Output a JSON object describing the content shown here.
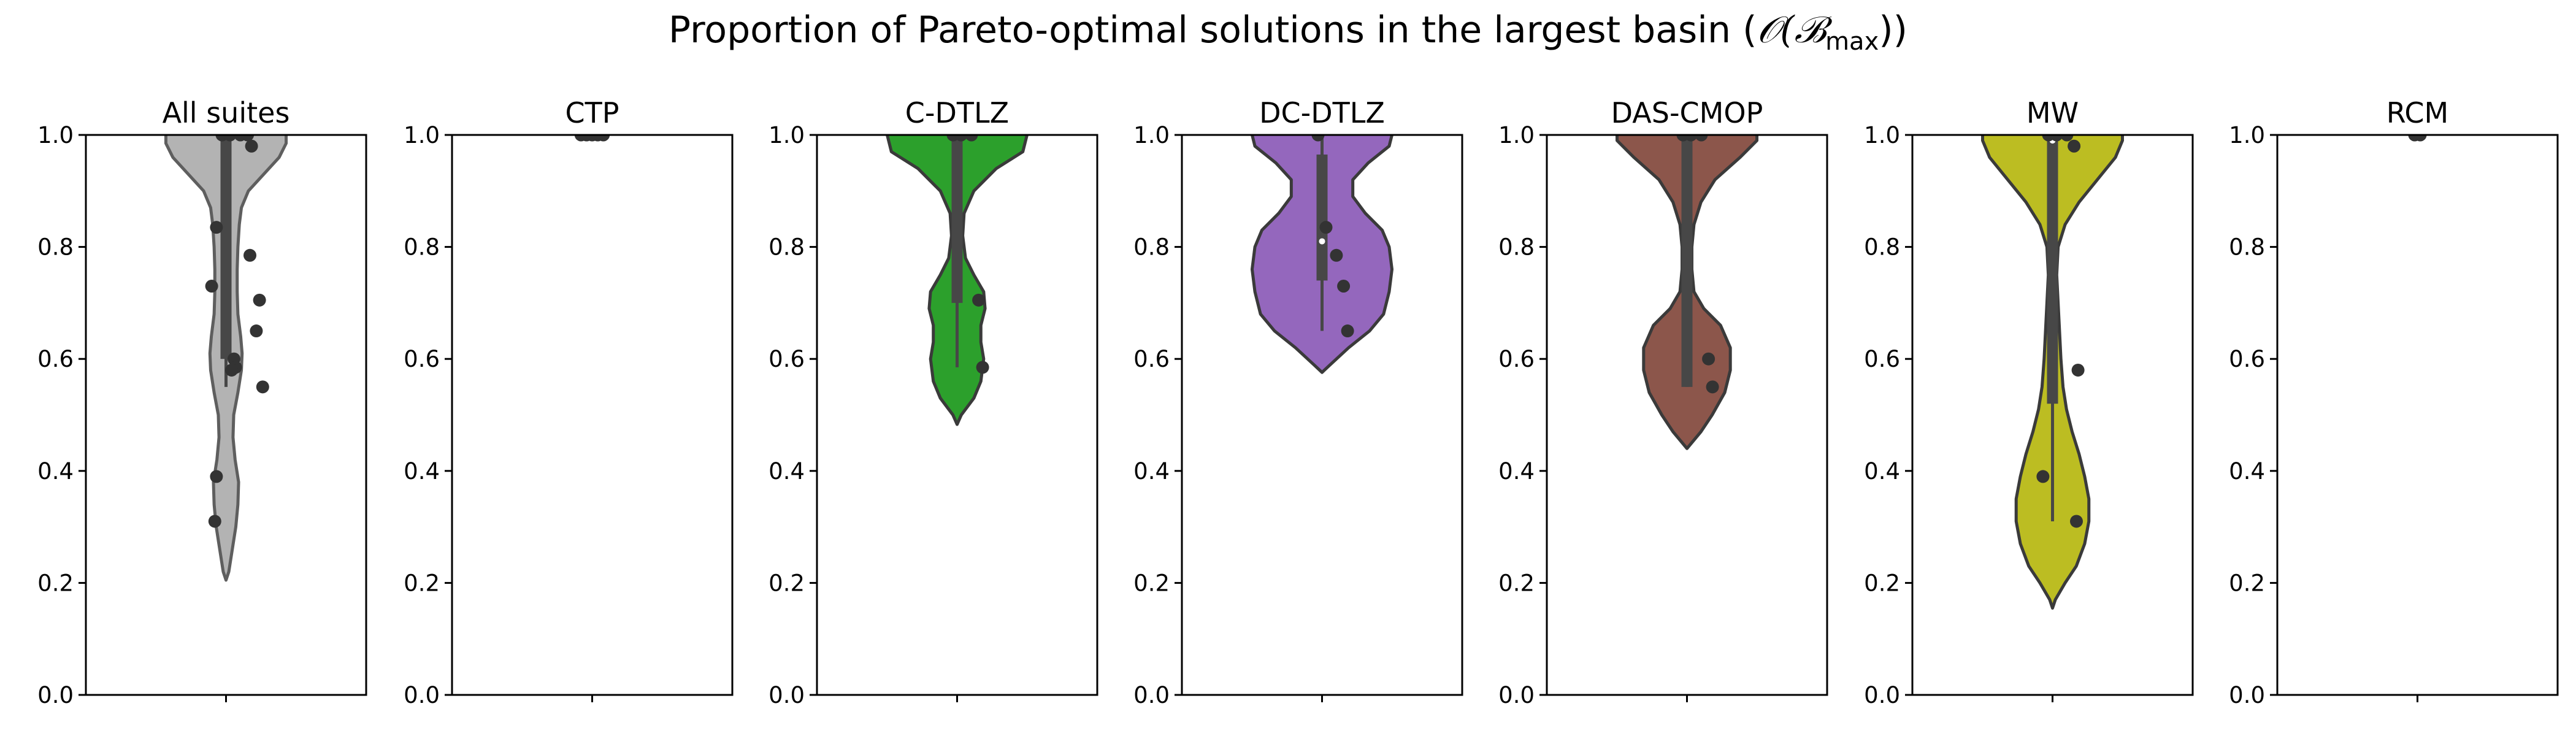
{
  "title": {
    "text": "Proportion of Pareto-optimal solutions in the largest basin (",
    "math": "𝒪(ℬ",
    "sub": "max",
    "close": "))"
  },
  "chart_data": {
    "type": "violin",
    "ylim": [
      0,
      1
    ],
    "yticks": [
      "0.0",
      "0.2",
      "0.4",
      "0.6",
      "0.8",
      "1.0"
    ],
    "grid": false,
    "panels": [
      {
        "title": "All suites",
        "color": "#b3b3b3",
        "outline": "#5e5e5e",
        "points": [
          1.0,
          1.0,
          1.0,
          1.0,
          0.98,
          0.835,
          0.785,
          0.73,
          0.705,
          0.65,
          0.6,
          0.585,
          0.58,
          0.55,
          0.39,
          0.31
        ],
        "box": {
          "q1": 0.6,
          "median": 1.0,
          "q3": 1.0,
          "whisker_low": 0.55,
          "whisker_high": 1.0
        },
        "shape": [
          [
            0.205,
            0.0
          ],
          [
            0.22,
            0.02
          ],
          [
            0.26,
            0.045
          ],
          [
            0.3,
            0.07
          ],
          [
            0.34,
            0.085
          ],
          [
            0.38,
            0.09
          ],
          [
            0.42,
            0.065
          ],
          [
            0.46,
            0.05
          ],
          [
            0.5,
            0.055
          ],
          [
            0.54,
            0.085
          ],
          [
            0.58,
            0.11
          ],
          [
            0.61,
            0.115
          ],
          [
            0.64,
            0.105
          ],
          [
            0.68,
            0.085
          ],
          [
            0.72,
            0.08
          ],
          [
            0.76,
            0.08
          ],
          [
            0.8,
            0.085
          ],
          [
            0.84,
            0.095
          ],
          [
            0.87,
            0.11
          ],
          [
            0.9,
            0.16
          ],
          [
            0.93,
            0.27
          ],
          [
            0.96,
            0.38
          ],
          [
            0.985,
            0.43
          ],
          [
            1.0,
            0.43
          ]
        ]
      },
      {
        "title": "CTP",
        "color": "#1f77b4",
        "outline": "#3a3a3a",
        "points": [
          1.0,
          1.0,
          1.0,
          1.0,
          1.0
        ],
        "box": null,
        "shape": null
      },
      {
        "title": "C-DTLZ",
        "color": "#2ca02c",
        "outline": "#3a3a3a",
        "points": [
          1.0,
          1.0,
          1.0,
          0.705,
          0.585
        ],
        "box": {
          "q1": 0.7,
          "median": 1.0,
          "q3": 1.0,
          "whisker_low": 0.585,
          "whisker_high": 1.0
        },
        "shape": [
          [
            0.483,
            0.0
          ],
          [
            0.5,
            0.03
          ],
          [
            0.53,
            0.12
          ],
          [
            0.56,
            0.17
          ],
          [
            0.6,
            0.19
          ],
          [
            0.63,
            0.17
          ],
          [
            0.66,
            0.17
          ],
          [
            0.69,
            0.2
          ],
          [
            0.72,
            0.19
          ],
          [
            0.75,
            0.12
          ],
          [
            0.78,
            0.06
          ],
          [
            0.82,
            0.04
          ],
          [
            0.86,
            0.05
          ],
          [
            0.9,
            0.12
          ],
          [
            0.94,
            0.28
          ],
          [
            0.97,
            0.47
          ],
          [
            1.0,
            0.5
          ]
        ]
      },
      {
        "title": "DC-DTLZ",
        "color": "#9467bd",
        "outline": "#3a3a3a",
        "points": [
          1.0,
          0.835,
          0.785,
          0.73,
          0.65
        ],
        "box": {
          "q1": 0.74,
          "median": 0.81,
          "q3": 0.965,
          "whisker_low": 0.65,
          "whisker_high": 1.0
        },
        "shape": [
          [
            0.576,
            0.0
          ],
          [
            0.59,
            0.06
          ],
          [
            0.62,
            0.19
          ],
          [
            0.65,
            0.34
          ],
          [
            0.68,
            0.44
          ],
          [
            0.72,
            0.48
          ],
          [
            0.76,
            0.5
          ],
          [
            0.8,
            0.48
          ],
          [
            0.83,
            0.43
          ],
          [
            0.86,
            0.31
          ],
          [
            0.89,
            0.22
          ],
          [
            0.92,
            0.22
          ],
          [
            0.95,
            0.33
          ],
          [
            0.98,
            0.48
          ],
          [
            1.0,
            0.5
          ]
        ]
      },
      {
        "title": "DAS-CMOP",
        "color": "#8c564b",
        "outline": "#3a3a3a",
        "points": [
          1.0,
          1.0,
          1.0,
          0.6,
          0.55
        ],
        "box": {
          "q1": 0.55,
          "median": 1.0,
          "q3": 1.0,
          "whisker_low": 0.55,
          "whisker_high": 1.0
        },
        "shape": [
          [
            0.44,
            0.0
          ],
          [
            0.47,
            0.1
          ],
          [
            0.5,
            0.18
          ],
          [
            0.54,
            0.27
          ],
          [
            0.58,
            0.31
          ],
          [
            0.62,
            0.31
          ],
          [
            0.66,
            0.24
          ],
          [
            0.69,
            0.12
          ],
          [
            0.72,
            0.05
          ],
          [
            0.76,
            0.035
          ],
          [
            0.8,
            0.035
          ],
          [
            0.84,
            0.05
          ],
          [
            0.88,
            0.1
          ],
          [
            0.92,
            0.2
          ],
          [
            0.96,
            0.38
          ],
          [
            0.99,
            0.5
          ],
          [
            1.0,
            0.5
          ]
        ]
      },
      {
        "title": "MW",
        "color": "#bcbd22",
        "outline": "#3a3a3a",
        "points": [
          1.0,
          1.0,
          1.0,
          0.98,
          0.58,
          0.39,
          0.31
        ],
        "box": {
          "q1": 0.52,
          "median": 0.99,
          "q3": 1.0,
          "whisker_low": 0.31,
          "whisker_high": 1.0
        },
        "shape": [
          [
            0.155,
            0.0
          ],
          [
            0.17,
            0.02
          ],
          [
            0.2,
            0.09
          ],
          [
            0.23,
            0.17
          ],
          [
            0.27,
            0.23
          ],
          [
            0.31,
            0.26
          ],
          [
            0.35,
            0.26
          ],
          [
            0.39,
            0.23
          ],
          [
            0.43,
            0.19
          ],
          [
            0.47,
            0.14
          ],
          [
            0.51,
            0.1
          ],
          [
            0.55,
            0.075
          ],
          [
            0.6,
            0.06
          ],
          [
            0.65,
            0.05
          ],
          [
            0.7,
            0.04
          ],
          [
            0.75,
            0.03
          ],
          [
            0.8,
            0.04
          ],
          [
            0.84,
            0.09
          ],
          [
            0.88,
            0.19
          ],
          [
            0.92,
            0.32
          ],
          [
            0.96,
            0.45
          ],
          [
            0.99,
            0.5
          ],
          [
            1.0,
            0.5
          ]
        ]
      },
      {
        "title": "RCM",
        "color": "#17becf",
        "outline": "#3a3a3a",
        "points": [
          1.0,
          1.0
        ],
        "box": null,
        "shape": null
      }
    ]
  }
}
